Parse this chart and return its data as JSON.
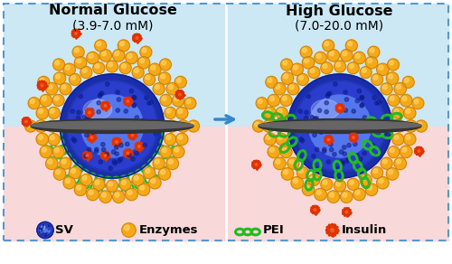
{
  "bg_top_color": "#cce8f5",
  "bg_bottom_color": "#f9d8da",
  "border_color": "#5599cc",
  "title_left": "Normal Glucose",
  "subtitle_left": "(3.9-7.0 mM)",
  "title_right": "High Glucose",
  "subtitle_right": "(7.0-20.0 mM)",
  "title_fontsize": 11.5,
  "subtitle_fontsize": 10,
  "sv_color_center": "#3355ee",
  "sv_color_mid": "#2244cc",
  "sv_color_edge": "#1a2f99",
  "enzyme_color": "#f5a818",
  "enzyme_dark": "#c07a10",
  "enzyme_light": "#ffd060",
  "pei_color": "#22bb22",
  "insulin_color": "#dd3300",
  "arrow_color": "#3388cc",
  "membrane_color": "#555555",
  "membrane_dark": "#222222"
}
